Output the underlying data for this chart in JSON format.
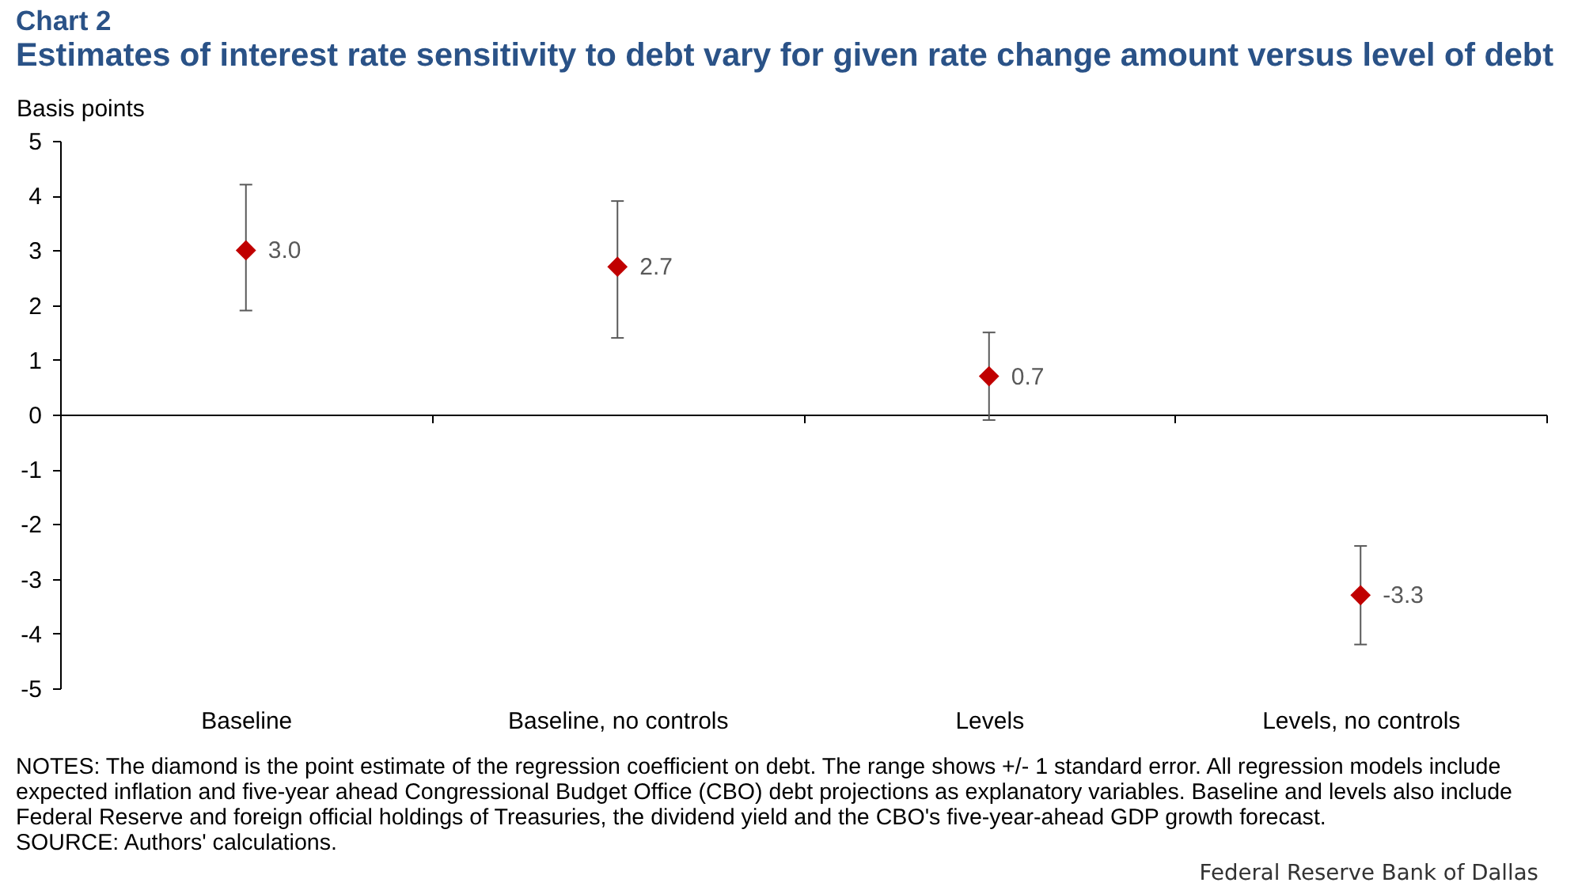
{
  "chart_data": {
    "type": "scatter",
    "title": "Chart 2",
    "subtitle": "Estimates of interest rate sensitivity to debt vary for given rate change amount versus level of debt",
    "ylabel": "Basis points",
    "categories": [
      "Baseline",
      "Baseline, no controls",
      "Levels",
      "Levels, no controls"
    ],
    "values": [
      3.0,
      2.7,
      0.7,
      -3.3
    ],
    "value_labels": [
      "3.0",
      "2.7",
      "0.7",
      "-3.3"
    ],
    "errors": [
      [
        1.9,
        4.2
      ],
      [
        1.4,
        3.9
      ],
      [
        -0.1,
        1.5
      ],
      [
        -4.2,
        -2.4
      ]
    ],
    "color": "#c00000",
    "marker": "diamond",
    "ylim": [
      -5,
      5
    ],
    "yticks": [
      -5,
      -4,
      -3,
      -2,
      -1,
      0,
      1,
      2,
      3,
      4,
      5
    ],
    "annotations": [
      "NOTES: The diamond is the point estimate of the regression coefficient on debt. The range shows +/- 1 standard error. All regression models include expected inflation and five-year ahead Congressional Budget Office (CBO) debt projections as explanatory variables. Baseline and levels also include Federal Reserve and foreign official holdings of Treasuries, the dividend yield and the CBO's five-year-ahead GDP growth forecast.",
      "SOURCE: Authors' calculations.",
      "Federal Reserve Bank of Dallas"
    ]
  }
}
